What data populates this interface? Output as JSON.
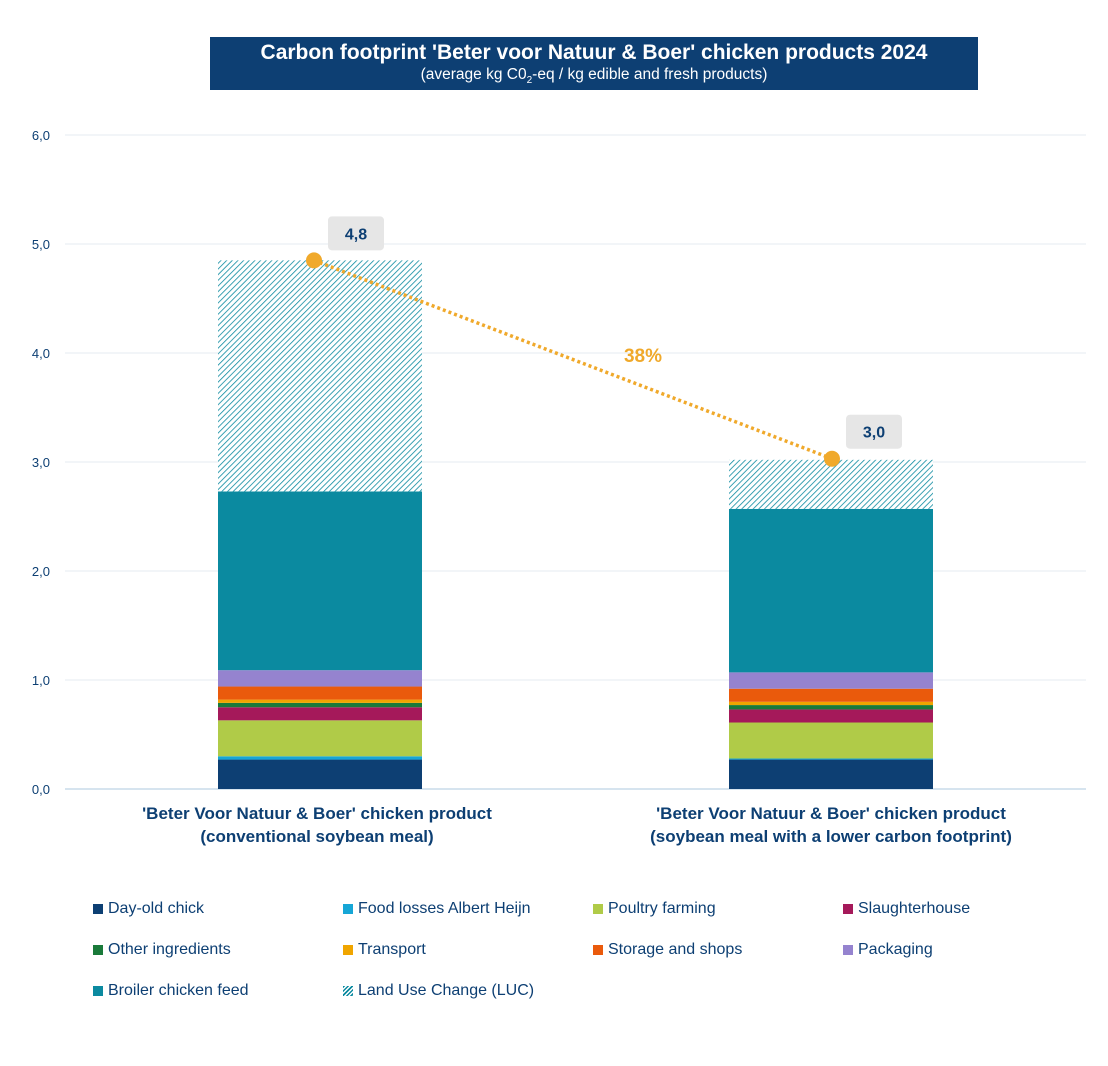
{
  "chart_data": {
    "type": "bar",
    "stacked": true,
    "title": "Carbon footprint 'Beter voor Natuur & Boer' chicken products 2024",
    "subtitle_pre": "(average kg C0",
    "subtitle_sub": "2",
    "subtitle_post": "-eq / kg edible and fresh products)",
    "ylim": [
      0,
      6
    ],
    "yticks": [
      "0,0",
      "1,0",
      "2,0",
      "3,0",
      "4,0",
      "5,0",
      "6,0"
    ],
    "categories": [
      {
        "line1": "'Beter Voor Natuur & Boer' chicken product",
        "line2": "(conventional soybean meal)"
      },
      {
        "line1": "'Beter Voor Natuur & Boer' chicken product",
        "line2": "(soybean meal with a lower carbon footprint)"
      }
    ],
    "series": [
      {
        "name": "Day-old chick",
        "color": "#0d3f73",
        "values": [
          0.27,
          0.27
        ]
      },
      {
        "name": "Food losses Albert Heijn",
        "color": "#16a6d6",
        "values": [
          0.03,
          0.01
        ]
      },
      {
        "name": "Poultry farming",
        "color": "#b0cb48",
        "values": [
          0.33,
          0.33
        ]
      },
      {
        "name": "Slaughterhouse",
        "color": "#a5195a",
        "values": [
          0.12,
          0.12
        ]
      },
      {
        "name": "Other ingredients",
        "color": "#1a7a3a",
        "values": [
          0.04,
          0.04
        ]
      },
      {
        "name": "Transport",
        "color": "#f0a500",
        "values": [
          0.03,
          0.03
        ]
      },
      {
        "name": "Storage and shops",
        "color": "#ea5a0c",
        "values": [
          0.12,
          0.12
        ]
      },
      {
        "name": "Packaging",
        "color": "#9583cf",
        "values": [
          0.15,
          0.15
        ]
      },
      {
        "name": "Broiler chicken feed",
        "color": "#0b8aa0",
        "values": [
          1.64,
          1.5
        ]
      },
      {
        "name": "Land Use Change (LUC)",
        "color": "#0b8aa0",
        "hatched": true,
        "values": [
          2.12,
          0.45
        ]
      }
    ],
    "totals": [
      4.8,
      3.0
    ],
    "total_labels": [
      "4,8",
      "3,0"
    ],
    "reduction_label": "38%",
    "accent": "#f0a92b"
  }
}
